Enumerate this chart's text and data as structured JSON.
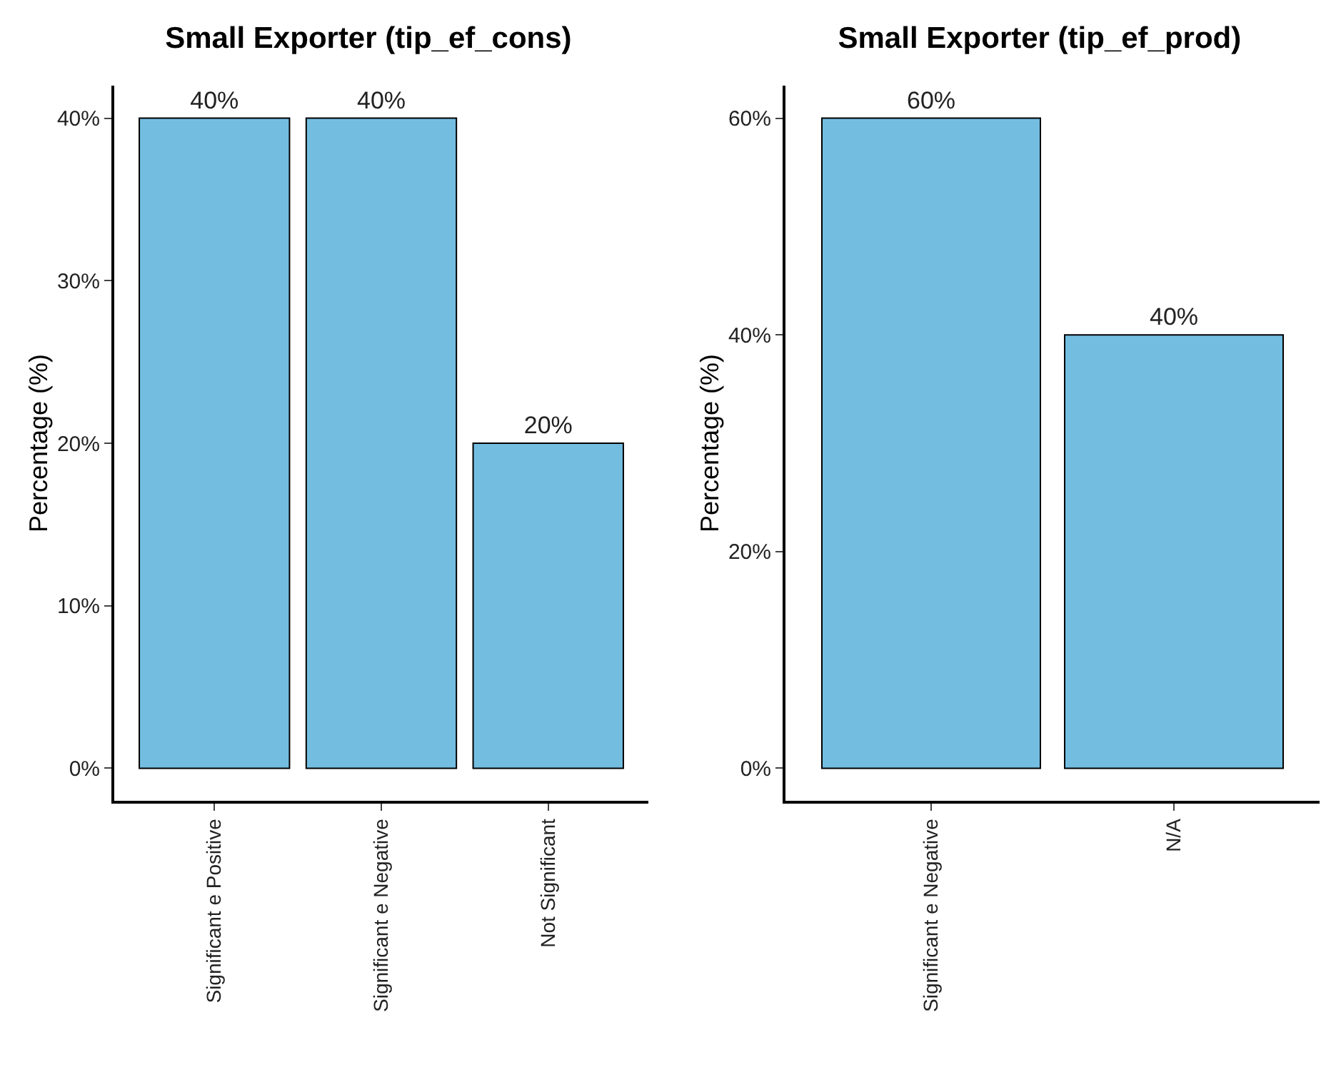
{
  "chart_data": [
    {
      "type": "bar",
      "title": "Small Exporter (tip_ef_cons)",
      "ylabel": "Percentage (%)",
      "categories": [
        "Significant e Positive",
        "Significant e Negative",
        "Not Significant"
      ],
      "values": [
        40,
        40,
        20
      ],
      "color": "#73bde0",
      "value_labels": [
        "40%",
        "40%",
        "20%"
      ],
      "ylim": [
        -2,
        42
      ],
      "yticks": [
        {
          "value": 0,
          "label": "0%"
        },
        {
          "value": 10,
          "label": "10%"
        },
        {
          "value": 20,
          "label": "20%"
        },
        {
          "value": 30,
          "label": "30%"
        },
        {
          "value": 40,
          "label": "40%"
        }
      ]
    },
    {
      "type": "bar",
      "title": "Small Exporter (tip_ef_prod)",
      "ylabel": "Percentage (%)",
      "categories": [
        "Significant e Negative",
        "N/A"
      ],
      "values": [
        60,
        40
      ],
      "color": "#73bde0",
      "value_labels": [
        "60%",
        "40%"
      ],
      "ylim": [
        -3,
        63
      ],
      "yticks": [
        {
          "value": 0,
          "label": "0%"
        },
        {
          "value": 20,
          "label": "20%"
        },
        {
          "value": 40,
          "label": "40%"
        },
        {
          "value": 60,
          "label": "60%"
        }
      ]
    }
  ]
}
